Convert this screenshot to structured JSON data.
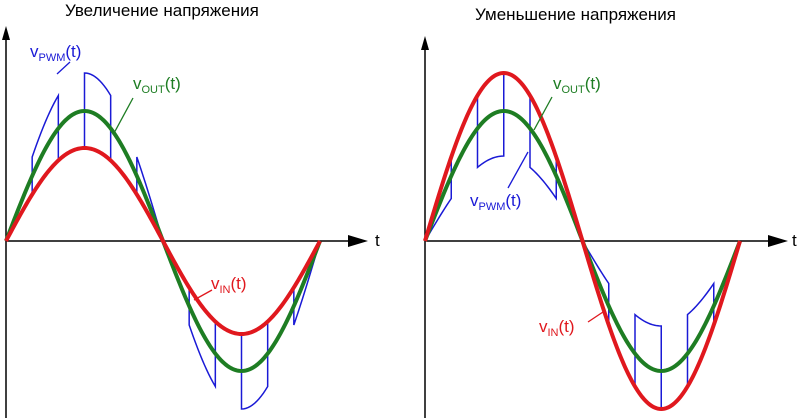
{
  "colors": {
    "vin": "#e0181e",
    "vout": "#1e7d23",
    "vpwm": "#1a1ad6",
    "axis": "#000000"
  },
  "panels": [
    {
      "title": "Увеличение напряжения",
      "t_label": "t",
      "labels": {
        "vpwm": {
          "v": "v",
          "sub": "PWM",
          "arg": "(t)"
        },
        "vout": {
          "v": "v",
          "sub": "OUT",
          "arg": "(t)"
        },
        "vin": {
          "v": "v",
          "sub": "IN",
          "arg": "(t)"
        }
      }
    },
    {
      "title": "Уменьшение напряжения",
      "t_label": "t",
      "labels": {
        "vout": {
          "v": "v",
          "sub": "OUT",
          "arg": "(t)"
        },
        "vpwm": {
          "v": "v",
          "sub": "PWM",
          "arg": "(t)"
        },
        "vin": {
          "v": "v",
          "sub": "IN",
          "arg": "(t)"
        }
      }
    }
  ]
}
